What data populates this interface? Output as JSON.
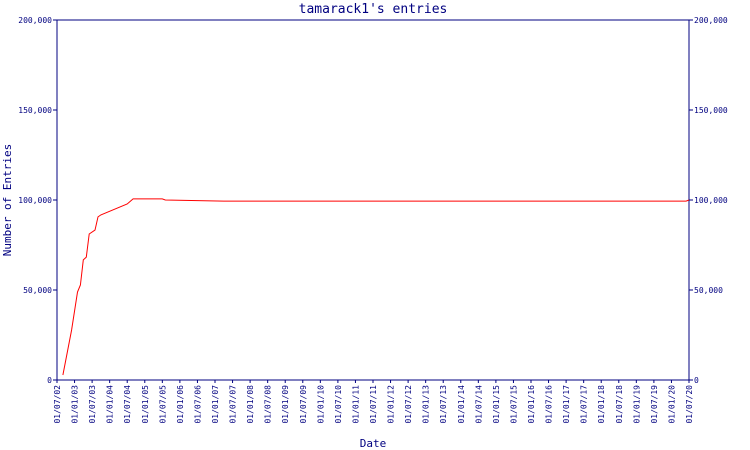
{
  "chart_data": {
    "type": "line",
    "title": "tamarack1's entries",
    "x_label": "Date",
    "y_label": "Number of Entries",
    "xlim": [
      "01/07/02",
      "01/07/20"
    ],
    "xticks": [
      "01/07/02",
      "01/01/03",
      "01/07/03",
      "01/01/04",
      "01/07/04",
      "01/01/05",
      "01/07/05",
      "01/01/06",
      "01/07/06",
      "01/01/07",
      "01/07/07",
      "01/01/08",
      "01/07/08",
      "01/01/09",
      "01/07/09",
      "01/01/10",
      "01/07/10",
      "01/01/11",
      "01/07/11",
      "01/01/12",
      "01/07/12",
      "01/01/13",
      "01/07/13",
      "01/01/14",
      "01/07/14",
      "01/01/15",
      "01/07/15",
      "01/01/16",
      "01/07/16",
      "01/01/17",
      "01/07/17",
      "01/01/18",
      "01/07/18",
      "01/01/19",
      "01/07/19",
      "01/01/20",
      "01/07/20"
    ],
    "ylim": [
      0,
      200000
    ],
    "yticks": [
      0,
      {
        "value": 50000,
        "label": "50,000"
      },
      {
        "value": 100000,
        "label": "100,000"
      },
      {
        "value": 150000,
        "label": "150,000"
      },
      {
        "value": 200000,
        "label": "200,000"
      }
    ],
    "axis_color": "#000080",
    "series": [
      {
        "color": "#ff0000",
        "x": [
          "01/09/02",
          "01/12/02",
          "01/02/03",
          "01/03/03",
          "01/04/03",
          "01/05/03",
          "01/06/03",
          "01/08/03",
          "01/09/03",
          "01/10/03",
          "01/07/04",
          "01/09/04",
          "01/07/05",
          "01/08/05",
          "01/04/07",
          "01/06/20",
          "01/07/20"
        ],
        "values": [
          2800,
          27800,
          48900,
          52800,
          66700,
          68300,
          81100,
          83300,
          90600,
          91700,
          97800,
          100600,
          100600,
          100000,
          99400,
          99400,
          100000
        ]
      }
    ]
  }
}
